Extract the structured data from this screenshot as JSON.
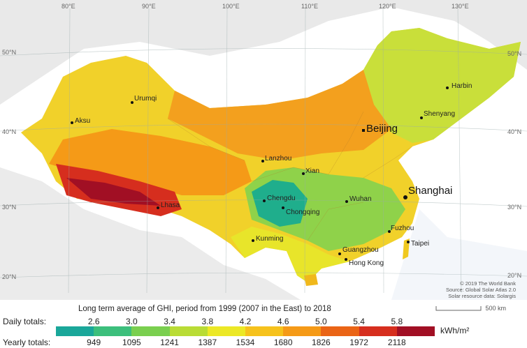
{
  "map": {
    "grid_labels": {
      "top": [
        "80°E",
        "90°E",
        "100°E",
        "110°E",
        "120°E",
        "130°E"
      ],
      "left": [
        "50°N",
        "40°N",
        "30°N",
        "20°N"
      ],
      "right": [
        "50°N",
        "40°N",
        "30°N",
        "20°N"
      ]
    },
    "cities": [
      {
        "name": "Urumqi",
        "major": false
      },
      {
        "name": "Aksu",
        "major": false
      },
      {
        "name": "Harbin",
        "major": false
      },
      {
        "name": "Shenyang",
        "major": false
      },
      {
        "name": "Beijing",
        "major": true
      },
      {
        "name": "Lanzhou",
        "major": false
      },
      {
        "name": "Xian",
        "major": false
      },
      {
        "name": "Shanghai",
        "major": true
      },
      {
        "name": "Lhasa",
        "major": false
      },
      {
        "name": "Chengdu",
        "major": false
      },
      {
        "name": "Chongqing",
        "major": false
      },
      {
        "name": "Wuhan",
        "major": false
      },
      {
        "name": "Kunming",
        "major": false
      },
      {
        "name": "Fuzhou",
        "major": false
      },
      {
        "name": "Taipei",
        "major": false
      },
      {
        "name": "Guangzhou",
        "major": false
      },
      {
        "name": "Hong Kong",
        "major": false
      }
    ],
    "credit_lines": [
      "© 2019 The World Bank",
      "Source: Global Solar Atlas 2.0",
      "Solar resource data: Solargis"
    ],
    "scale_label": "500 km"
  },
  "legend": {
    "title": "Long term average of GHI, period from 1999 (2007 in the East) to 2018",
    "daily_label": "Daily totals:",
    "yearly_label": "Yearly totals:",
    "daily_values": [
      "2.6",
      "3.0",
      "3.4",
      "3.8",
      "4.2",
      "4.6",
      "5.0",
      "5.4",
      "5.8"
    ],
    "yearly_values": [
      "949",
      "1095",
      "1241",
      "1387",
      "1534",
      "1680",
      "1826",
      "1972",
      "2118"
    ],
    "unit": "kWh/m²",
    "colors": [
      "#1aa79a",
      "#3cbf7c",
      "#7acf4f",
      "#b9dc35",
      "#ece826",
      "#f6c21c",
      "#f59a17",
      "#ea6416",
      "#d62e1e",
      "#a10f24"
    ]
  }
}
